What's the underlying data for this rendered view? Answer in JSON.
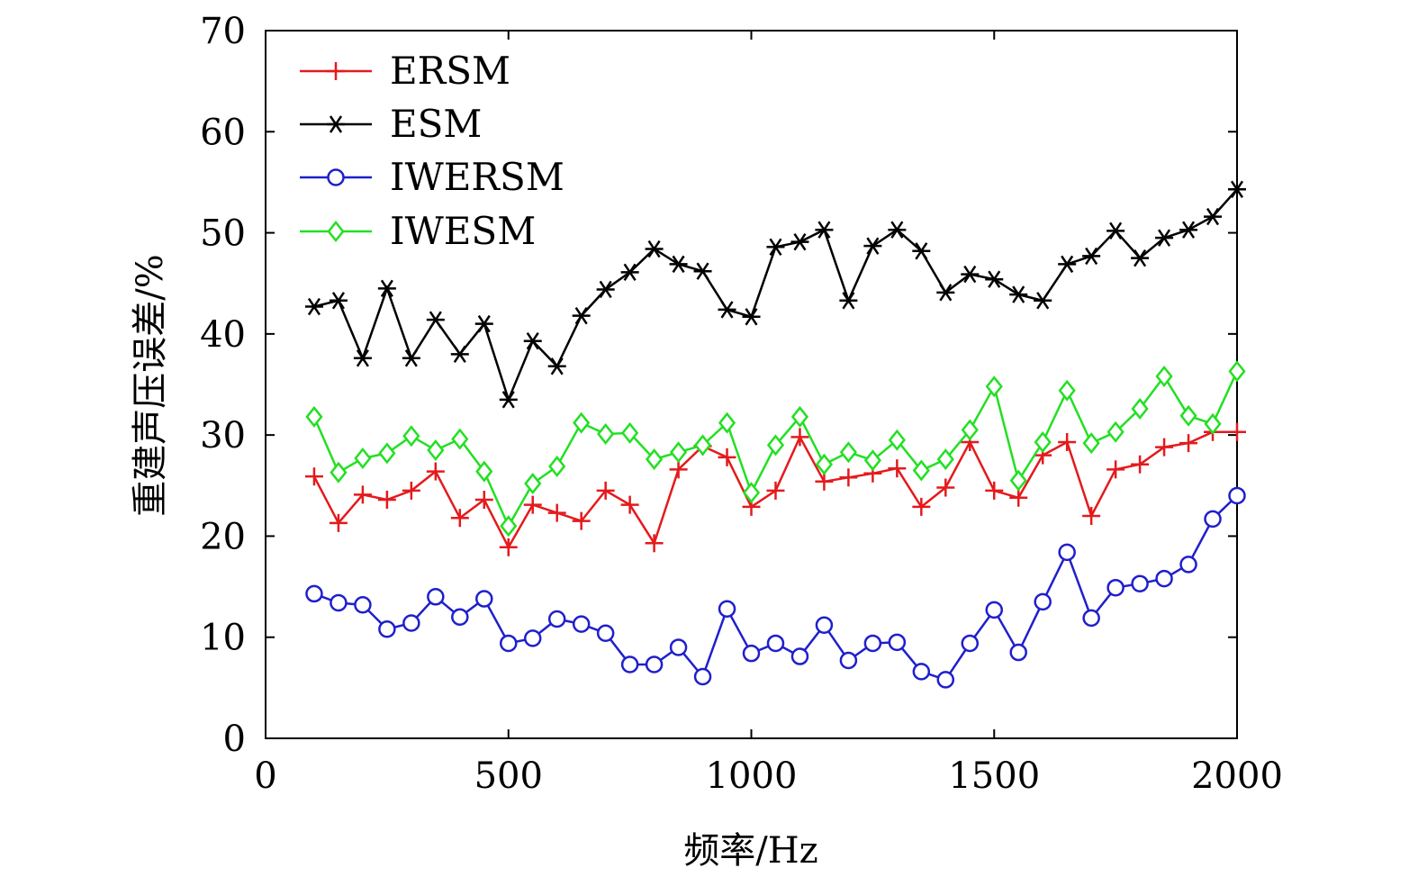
{
  "chart_data": {
    "type": "line",
    "xlabel": "频率/Hz",
    "ylabel": "重建声压误差/%",
    "xlim": [
      0,
      2000
    ],
    "ylim": [
      0,
      70
    ],
    "xticks": [
      "0",
      "500",
      "1000",
      "1500",
      "2000"
    ],
    "yticks": [
      "0",
      "10",
      "20",
      "30",
      "40",
      "50",
      "60",
      "70"
    ],
    "legend_position": "top-left",
    "grid": false,
    "x": [
      100,
      150,
      200,
      250,
      300,
      350,
      400,
      450,
      500,
      550,
      600,
      650,
      700,
      750,
      800,
      850,
      900,
      950,
      1000,
      1050,
      1100,
      1150,
      1200,
      1250,
      1300,
      1350,
      1400,
      1450,
      1500,
      1550,
      1600,
      1650,
      1700,
      1750,
      1800,
      1850,
      1900,
      1950,
      2000
    ],
    "series": [
      {
        "name": "ERSM",
        "color": "#e41a1c",
        "marker": "plus",
        "values": [
          25.9,
          21.3,
          24.1,
          23.6,
          24.5,
          26.4,
          21.8,
          23.6,
          18.9,
          23.1,
          22.3,
          21.5,
          24.5,
          23.1,
          19.3,
          26.6,
          28.9,
          27.8,
          22.9,
          24.5,
          29.8,
          25.4,
          25.8,
          26.2,
          26.7,
          22.9,
          24.8,
          29.3,
          24.5,
          23.8,
          28.0,
          29.3,
          22.0,
          26.6,
          27.1,
          28.8,
          29.2,
          30.3,
          30.3
        ]
      },
      {
        "name": "ESM",
        "color": "#000000",
        "marker": "asterisk",
        "values": [
          42.7,
          43.3,
          37.6,
          44.5,
          37.6,
          41.4,
          38.0,
          41.0,
          33.5,
          39.3,
          36.8,
          41.8,
          44.4,
          46.1,
          48.4,
          46.9,
          46.2,
          42.4,
          41.7,
          48.6,
          49.1,
          50.3,
          43.3,
          48.7,
          50.3,
          48.2,
          44.1,
          45.9,
          45.4,
          43.9,
          43.3,
          46.9,
          47.7,
          50.2,
          47.5,
          49.5,
          50.3,
          51.6,
          54.3
        ]
      },
      {
        "name": "IWERSM",
        "color": "#1f1fcc",
        "marker": "circle",
        "values": [
          14.3,
          13.4,
          13.2,
          10.8,
          11.4,
          14.0,
          12.0,
          13.8,
          9.4,
          9.9,
          11.8,
          11.3,
          10.4,
          7.3,
          7.3,
          9.0,
          6.1,
          12.8,
          8.4,
          9.4,
          8.1,
          11.2,
          7.7,
          9.4,
          9.5,
          6.6,
          5.8,
          9.4,
          12.7,
          8.5,
          13.5,
          18.4,
          11.9,
          14.9,
          15.3,
          15.8,
          17.2,
          21.7,
          24.0
        ]
      },
      {
        "name": "IWESM",
        "color": "#22e022",
        "marker": "diamond",
        "values": [
          31.8,
          26.3,
          27.7,
          28.2,
          29.9,
          28.5,
          29.6,
          26.4,
          21.0,
          25.2,
          26.9,
          31.2,
          30.1,
          30.2,
          27.6,
          28.3,
          29.0,
          31.2,
          24.3,
          29.0,
          31.8,
          27.1,
          28.3,
          27.5,
          29.5,
          26.5,
          27.6,
          30.5,
          34.8,
          25.5,
          29.3,
          34.4,
          29.2,
          30.3,
          32.6,
          35.8,
          31.9,
          31.1,
          36.3
        ]
      }
    ]
  }
}
